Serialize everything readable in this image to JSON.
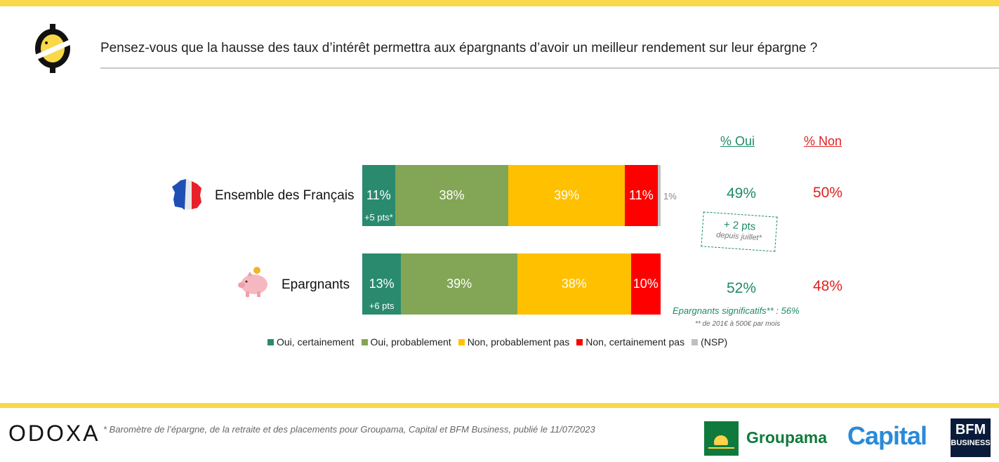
{
  "question": "Pensez-vous que la hausse des taux d’intérêt permettra aux épargnants d’avoir un meilleur rendement sur leur épargne ?",
  "columns": {
    "oui": "% Oui",
    "non": "% Non"
  },
  "colors": {
    "oui_certainement": "#2a8a6e",
    "oui_probablement": "#82a655",
    "non_probablement_pas": "#ffc000",
    "non_certainement_pas": "#ff0000",
    "nsp": "#bfbfbf",
    "oui_text": "#1f8a6a",
    "non_text": "#e02020",
    "brand_yellow": "#f9d84a"
  },
  "rows": [
    {
      "label": "Ensemble des Français",
      "icon": "france-map-icon",
      "segments": [
        "11%",
        "38%",
        "39%",
        "11%"
      ],
      "nsp_label": "1%",
      "sub": "+5 pts*",
      "oui": "49%",
      "non": "50%"
    },
    {
      "label": "Epargnants",
      "icon": "piggy-bank-icon",
      "segments": [
        "13%",
        "39%",
        "38%",
        "10%"
      ],
      "sub": "+6 pts",
      "oui": "52%",
      "non": "48%"
    }
  ],
  "note": {
    "main": "+ 2 pts",
    "sub": "depuis juillet*"
  },
  "signif": "Epargnants significatifs** : 56%",
  "signif_sub": "** de 201€ à 500€ par mois",
  "legend": [
    "Oui, certainement",
    "Oui, probablement",
    "Non, probablement pas",
    "Non, certainement pas",
    "(NSP)"
  ],
  "footer": {
    "brand": "ODOXA",
    "footnote": "* Baromètre de l’épargne, de la retraite et des placements pour Groupama, Capital et BFM Business, publié le 11/07/2023",
    "groupama": "Groupama",
    "capital": "Capital",
    "bfm_top": "BFM",
    "bfm_bottom": "BUSINESS"
  },
  "chart_data": {
    "type": "bar",
    "stacked": true,
    "orientation": "horizontal",
    "categories": [
      "Ensemble des Français",
      "Epargnants"
    ],
    "series": [
      {
        "name": "Oui, certainement",
        "values": [
          11,
          13
        ]
      },
      {
        "name": "Oui, probablement",
        "values": [
          38,
          39
        ]
      },
      {
        "name": "Non, probablement pas",
        "values": [
          39,
          38
        ]
      },
      {
        "name": "Non, certainement pas",
        "values": [
          11,
          10
        ]
      },
      {
        "name": "(NSP)",
        "values": [
          1,
          0
        ]
      }
    ],
    "totals_oui": [
      49,
      52
    ],
    "totals_non": [
      50,
      48
    ],
    "legend": "bottom"
  }
}
